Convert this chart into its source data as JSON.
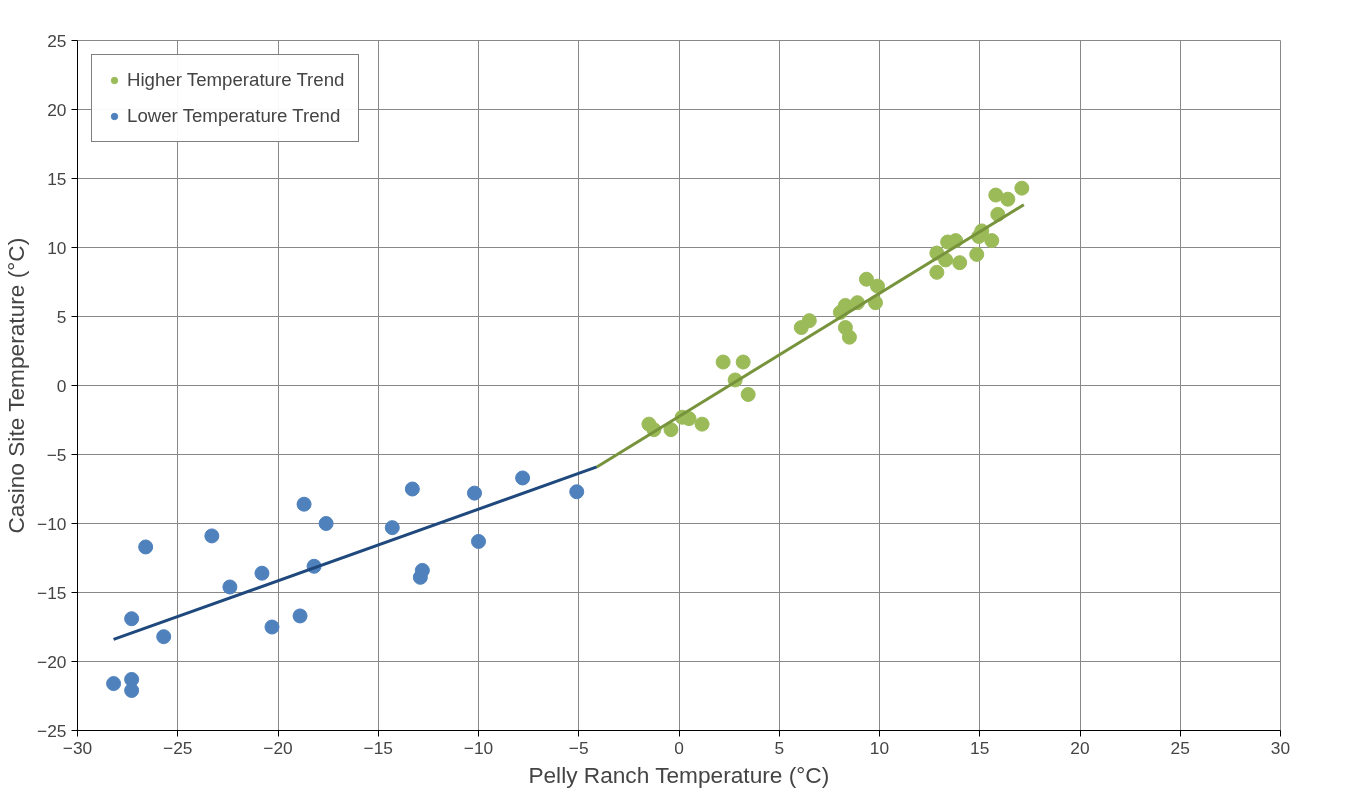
{
  "chart_data": {
    "type": "scatter",
    "xlabel": "Pelly Ranch Temperature (°C)",
    "ylabel": "Casino Site Temperature (°C)",
    "xlim": [
      -30,
      30
    ],
    "ylim": [
      -25,
      25
    ],
    "xticks": [
      -30,
      -25,
      -20,
      -15,
      -10,
      -5,
      0,
      5,
      10,
      15,
      20,
      25,
      30
    ],
    "yticks": [
      -25,
      -20,
      -15,
      -10,
      -5,
      0,
      5,
      10,
      15,
      20,
      25
    ],
    "grid": true,
    "legend": "top left",
    "marker": "circle",
    "series": [
      {
        "name": "Higher Temperature Trend",
        "color": "#9bbb59",
        "x": [
          -1.5,
          -1.25,
          -0.4,
          0.16,
          0.5,
          1.15,
          2.2,
          2.8,
          3.2,
          3.45,
          6.1,
          6.5,
          8.05,
          8.3,
          8.3,
          8.5,
          8.9,
          9.35,
          9.9,
          9.8,
          12.86,
          13.4,
          13.8,
          12.86,
          13.3,
          14.0,
          14.85,
          15.1,
          15.6,
          15.9,
          15.8,
          16.4,
          17.1,
          14.95
        ],
        "values": [
          -2.8,
          -3.2,
          -3.2,
          -2.3,
          -2.4,
          -2.8,
          1.7,
          0.4,
          1.7,
          -0.65,
          4.2,
          4.7,
          5.3,
          5.8,
          4.2,
          3.5,
          6.0,
          7.7,
          7.2,
          6.0,
          9.6,
          10.4,
          10.5,
          8.2,
          9.1,
          8.9,
          9.5,
          11.2,
          10.5,
          12.4,
          13.8,
          13.5,
          14.3,
          10.8
        ]
      },
      {
        "name": "Lower Temperature Trend",
        "color": "#4f81bd",
        "x": [
          -28.2,
          -27.3,
          -27.3,
          -27.3,
          -26.6,
          -25.7,
          -23.3,
          -22.4,
          -20.8,
          -20.3,
          -18.9,
          -18.7,
          -18.2,
          -17.6,
          -14.3,
          -13.3,
          -12.8,
          -12.9,
          -10.2,
          -10.0,
          -7.8,
          -5.1
        ],
        "values": [
          -21.6,
          -21.3,
          -22.1,
          -16.9,
          -11.7,
          -18.2,
          -10.9,
          -14.6,
          -13.6,
          -17.5,
          -16.7,
          -8.6,
          -13.1,
          -10.0,
          -10.3,
          -7.5,
          -13.4,
          -13.9,
          -7.8,
          -11.3,
          -6.7,
          -7.7
        ]
      },
      {
        "type": "line",
        "marker": "none",
        "color": "#1f497d",
        "x": [
          -28.2,
          -4.1
        ],
        "values": [
          -18.4,
          -5.9
        ]
      },
      {
        "type": "line",
        "marker": "none",
        "color": "#77933c",
        "x": [
          -4.1,
          17.2
        ],
        "values": [
          -5.9,
          13.1
        ]
      }
    ]
  }
}
